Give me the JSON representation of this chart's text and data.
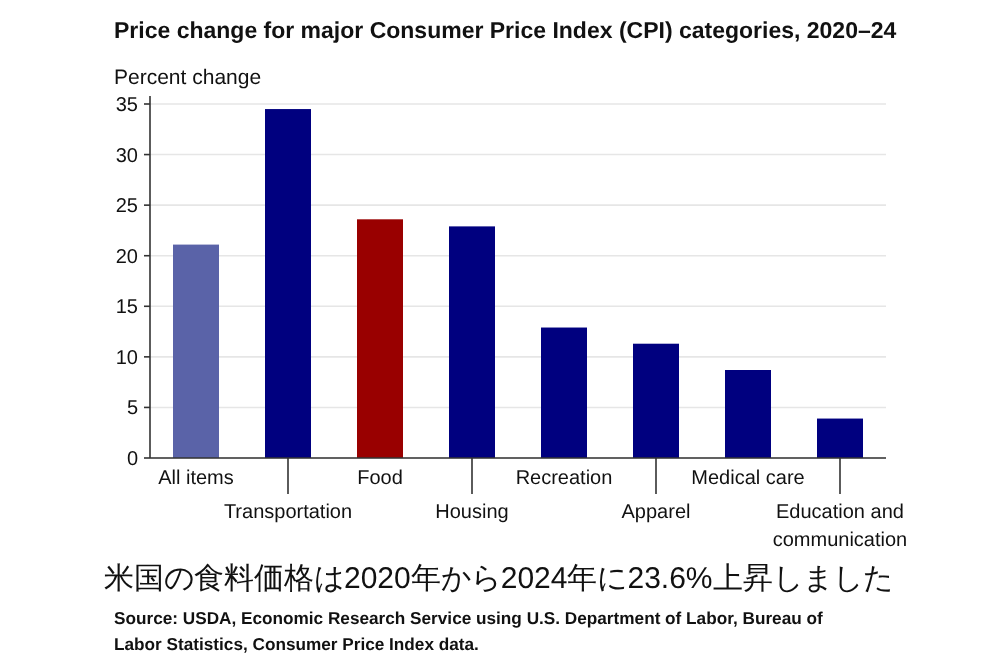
{
  "chart_data": {
    "type": "bar",
    "title": "Price change for major Consumer Price Index (CPI) categories, 2020–24",
    "ylabel": "Percent change",
    "categories": [
      "All items",
      "Transportation",
      "Food",
      "Housing",
      "Recreation",
      "Apparel",
      "Medical care",
      "Education and communication"
    ],
    "values": [
      21.1,
      34.5,
      23.6,
      22.9,
      12.9,
      11.3,
      8.7,
      3.9
    ],
    "colors": [
      "#5a63a8",
      "#00007f",
      "#990000",
      "#00007f",
      "#00007f",
      "#00007f",
      "#00007f",
      "#00007f"
    ],
    "ylim": [
      0,
      35
    ],
    "yticks": [
      0,
      5,
      10,
      15,
      20,
      25,
      30,
      35
    ],
    "grid": "y",
    "annotations": [
      "米国の食料価格は2020年から2024年に23.6%上昇しました",
      "Source: USDA, Economic Research Service using U.S. Department of Labor, Bureau of Labor Statistics, Consumer Price Index data."
    ]
  }
}
